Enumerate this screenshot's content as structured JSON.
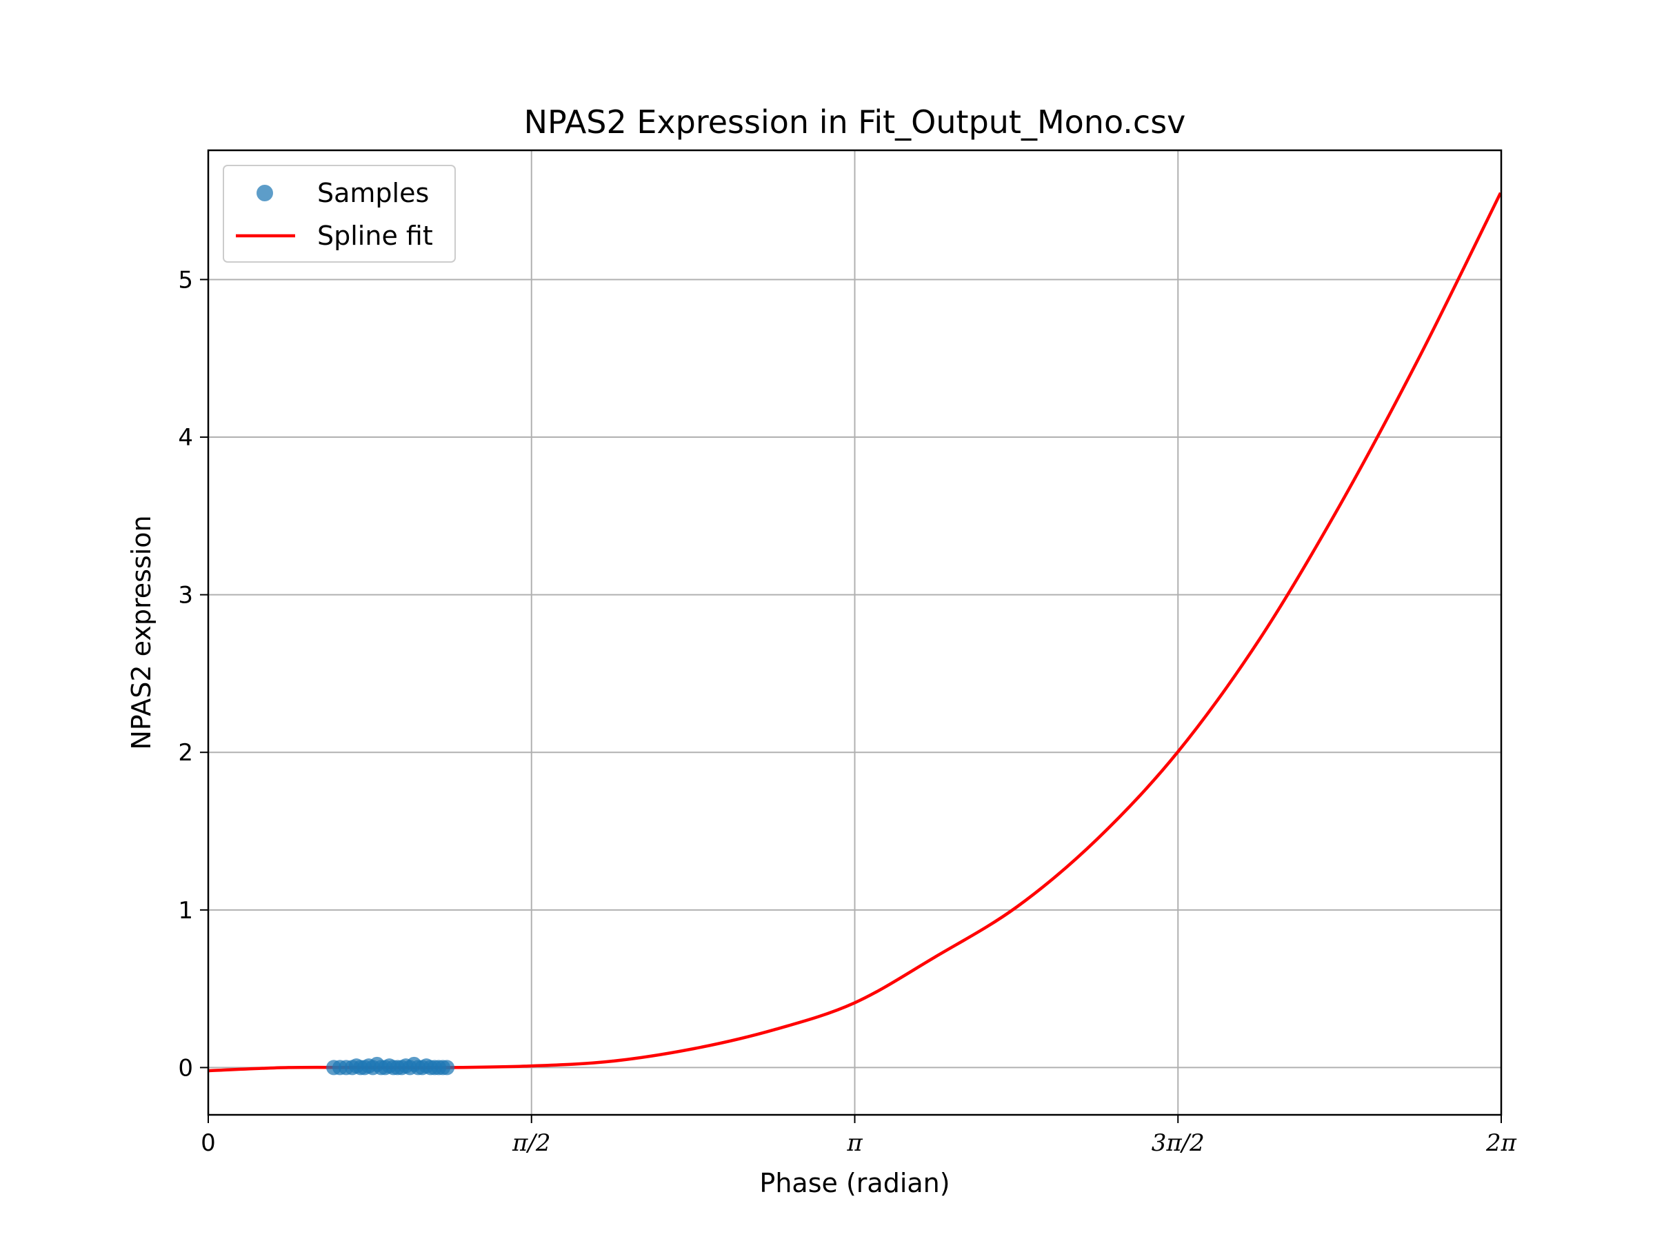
{
  "chart_data": {
    "type": "scatter",
    "title": "NPAS2 Expression in Fit_Output_Mono.csv",
    "xlabel": "Phase (radian)",
    "ylabel": "NPAS2 expression",
    "xlim": [
      0,
      6.283185
    ],
    "ylim": [
      -0.3,
      5.82
    ],
    "grid": true,
    "legend_position": "top-left",
    "x_ticks": [
      {
        "value": 0,
        "label": "0"
      },
      {
        "value": 1.570796,
        "label": "π/2"
      },
      {
        "value": 3.141593,
        "label": "π"
      },
      {
        "value": 4.712389,
        "label": "3π/2"
      },
      {
        "value": 6.283185,
        "label": "2π"
      }
    ],
    "y_ticks": [
      {
        "value": 0,
        "label": "0"
      },
      {
        "value": 1,
        "label": "1"
      },
      {
        "value": 2,
        "label": "2"
      },
      {
        "value": 3,
        "label": "3"
      },
      {
        "value": 4,
        "label": "4"
      },
      {
        "value": 5,
        "label": "5"
      }
    ],
    "series": [
      {
        "name": "Samples",
        "kind": "scatter",
        "color": "#1f77b4",
        "x": [
          0.61,
          0.64,
          0.67,
          0.7,
          0.72,
          0.74,
          0.76,
          0.78,
          0.8,
          0.82,
          0.84,
          0.86,
          0.88,
          0.9,
          0.92,
          0.94,
          0.96,
          0.98,
          1.0,
          1.02,
          1.04,
          1.06,
          1.08,
          1.1,
          1.12,
          1.14,
          1.16
        ],
        "y": [
          0.0,
          0.0,
          0.0,
          0.0,
          0.01,
          0.0,
          0.0,
          0.01,
          0.0,
          0.02,
          0.0,
          0.0,
          0.01,
          0.0,
          0.0,
          0.0,
          0.01,
          0.0,
          0.02,
          0.0,
          0.0,
          0.01,
          0.0,
          0.0,
          0.0,
          0.0,
          0.0
        ]
      },
      {
        "name": "Spline fit",
        "kind": "line",
        "color": "#ff0000",
        "x": [
          0.0,
          0.39,
          0.79,
          1.18,
          1.57,
          1.96,
          2.36,
          2.75,
          3.14,
          3.53,
          3.93,
          4.32,
          4.71,
          5.11,
          5.5,
          5.89,
          6.28
        ],
        "y": [
          -0.02,
          0.0,
          0.0,
          0.0,
          0.01,
          0.04,
          0.12,
          0.24,
          0.41,
          0.7,
          1.02,
          1.45,
          2.0,
          2.72,
          3.57,
          4.52,
          5.55
        ]
      }
    ]
  }
}
